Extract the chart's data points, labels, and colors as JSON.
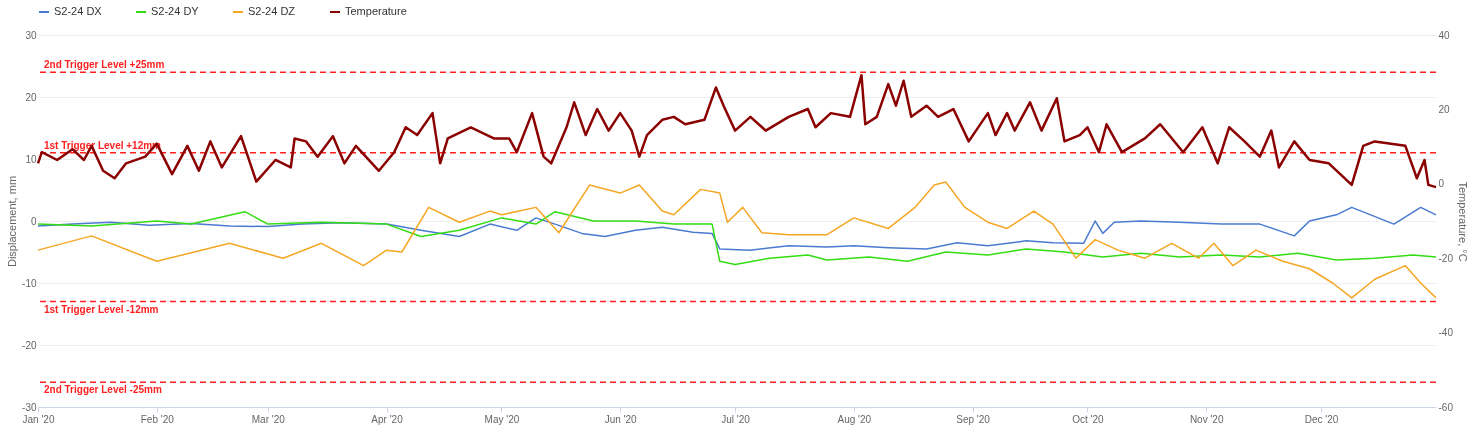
{
  "chart_data": {
    "type": "line",
    "ylabel": "Displacement, mm",
    "y2label": "Temperature, °C",
    "xlim": [
      "2020-01-01",
      "2020-12-31"
    ],
    "xticks": [
      {
        "value": "2020-01-01",
        "label": "Jan '20"
      },
      {
        "value": "2020-02-01",
        "label": "Feb '20"
      },
      {
        "value": "2020-03-01",
        "label": "Mar '20"
      },
      {
        "value": "2020-04-01",
        "label": "Apr '20"
      },
      {
        "value": "2020-05-01",
        "label": "May '20"
      },
      {
        "value": "2020-06-01",
        "label": "Jun '20"
      },
      {
        "value": "2020-07-01",
        "label": "Jul '20"
      },
      {
        "value": "2020-08-01",
        "label": "Aug '20"
      },
      {
        "value": "2020-09-01",
        "label": "Sep '20"
      },
      {
        "value": "2020-10-01",
        "label": "Oct '20"
      },
      {
        "value": "2020-11-01",
        "label": "Nov '20"
      },
      {
        "value": "2020-12-01",
        "label": "Dec '20"
      }
    ],
    "ylim": [
      -30,
      30
    ],
    "yticks": [
      -30,
      -20,
      -10,
      0,
      10,
      20,
      30
    ],
    "y2lim": [
      -60,
      40
    ],
    "y2ticks": [
      -60,
      -40,
      -20,
      0,
      20,
      40
    ],
    "grid": "y",
    "legend": "top",
    "line_style": "solid",
    "marker": "none",
    "series": [
      {
        "name": "S2-24 DX",
        "color": "#4a7bd0",
        "x": [
          "2020-01-01",
          "2020-01-10",
          "2020-01-20",
          "2020-01-30",
          "2020-02-10",
          "2020-02-20",
          "2020-03-01",
          "2020-03-10",
          "2020-03-20",
          "2020-04-01",
          "2020-04-10",
          "2020-04-20",
          "2020-04-28",
          "2020-05-05",
          "2020-05-10",
          "2020-05-15",
          "2020-05-22",
          "2020-05-28",
          "2020-06-05",
          "2020-06-12",
          "2020-06-20",
          "2020-06-25",
          "2020-06-27",
          "2020-07-05",
          "2020-07-15",
          "2020-07-25",
          "2020-08-01",
          "2020-08-10",
          "2020-08-20",
          "2020-08-28",
          "2020-09-05",
          "2020-09-15",
          "2020-09-22",
          "2020-09-30",
          "2020-10-03",
          "2020-10-05",
          "2020-10-08",
          "2020-10-15",
          "2020-10-25",
          "2020-11-05",
          "2020-11-15",
          "2020-11-24",
          "2020-11-28",
          "2020-12-05",
          "2020-12-09",
          "2020-12-20",
          "2020-12-27",
          "2020-12-31"
        ],
        "values": [
          -0.8,
          -0.5,
          -0.2,
          -0.7,
          -0.4,
          -0.8,
          -0.9,
          -0.5,
          -0.3,
          -0.5,
          -1.5,
          -2.5,
          -0.5,
          -1.5,
          0.5,
          -0.5,
          -2,
          -2.5,
          -1.5,
          -1,
          -1.8,
          -2,
          -4.5,
          -4.7,
          -4,
          -4.2,
          -4,
          -4.3,
          -4.5,
          -3.5,
          -4,
          -3.2,
          -3.5,
          -3.6,
          0,
          -2,
          -0.2,
          0,
          -0.2,
          -0.5,
          -0.5,
          -2.4,
          0,
          1,
          2.2,
          -0.5,
          2.2,
          1
        ]
      },
      {
        "name": "S2-24 DY",
        "color": "#33dd11",
        "x": [
          "2020-01-01",
          "2020-01-15",
          "2020-02-01",
          "2020-02-10",
          "2020-02-24",
          "2020-03-01",
          "2020-03-15",
          "2020-04-01",
          "2020-04-10",
          "2020-04-20",
          "2020-05-01",
          "2020-05-10",
          "2020-05-15",
          "2020-05-25",
          "2020-06-05",
          "2020-06-15",
          "2020-06-25",
          "2020-06-27",
          "2020-07-01",
          "2020-07-10",
          "2020-07-20",
          "2020-07-25",
          "2020-08-05",
          "2020-08-15",
          "2020-08-25",
          "2020-09-05",
          "2020-09-15",
          "2020-09-25",
          "2020-10-05",
          "2020-10-15",
          "2020-10-25",
          "2020-11-05",
          "2020-11-15",
          "2020-11-25",
          "2020-12-05",
          "2020-12-15",
          "2020-12-25",
          "2020-12-31"
        ],
        "values": [
          -0.5,
          -0.8,
          0,
          -0.5,
          1.5,
          -0.5,
          -0.2,
          -0.5,
          -2.5,
          -1.5,
          0.5,
          -0.5,
          1.5,
          0,
          0,
          -0.5,
          -0.5,
          -6.5,
          -7,
          -6,
          -5.5,
          -6.3,
          -5.8,
          -6.5,
          -5,
          -5.5,
          -4.5,
          -5,
          -5.8,
          -5.2,
          -5.8,
          -5.5,
          -5.8,
          -5.2,
          -6.3,
          -6,
          -5.5,
          -5.8
        ]
      },
      {
        "name": "S2-24 DZ",
        "color": "#f5a623",
        "x": [
          "2020-01-01",
          "2020-01-15",
          "2020-02-01",
          "2020-02-20",
          "2020-03-05",
          "2020-03-15",
          "2020-03-26",
          "2020-04-01",
          "2020-04-05",
          "2020-04-12",
          "2020-04-20",
          "2020-04-28",
          "2020-05-01",
          "2020-05-10",
          "2020-05-16",
          "2020-05-24",
          "2020-06-01",
          "2020-06-06",
          "2020-06-12",
          "2020-06-15",
          "2020-06-22",
          "2020-06-27",
          "2020-06-29",
          "2020-07-03",
          "2020-07-08",
          "2020-07-15",
          "2020-07-25",
          "2020-08-01",
          "2020-08-10",
          "2020-08-17",
          "2020-08-22",
          "2020-08-25",
          "2020-08-30",
          "2020-09-05",
          "2020-09-10",
          "2020-09-17",
          "2020-09-22",
          "2020-09-28",
          "2020-10-03",
          "2020-10-09",
          "2020-10-16",
          "2020-10-23",
          "2020-10-30",
          "2020-11-03",
          "2020-11-08",
          "2020-11-14",
          "2020-11-21",
          "2020-11-28",
          "2020-12-04",
          "2020-12-09",
          "2020-12-15",
          "2020-12-23",
          "2020-12-27",
          "2020-12-31"
        ],
        "values": [
          -4.7,
          -2.4,
          -6.5,
          -3.6,
          -6,
          -3.6,
          -7.2,
          -4.7,
          -5,
          2.2,
          -0.2,
          1.6,
          1,
          2.2,
          -1.9,
          5.8,
          4.5,
          5.8,
          1.6,
          1,
          5.1,
          4.5,
          -0.2,
          2.2,
          -1.9,
          -2.2,
          -2.2,
          0.5,
          -1.2,
          2.2,
          5.8,
          6.3,
          2.2,
          -0.2,
          -1.2,
          1.6,
          -0.5,
          -6,
          -3,
          -4.7,
          -6,
          -3.6,
          -6,
          -3.6,
          -7.2,
          -4.7,
          -6.5,
          -7.7,
          -10,
          -12.4,
          -9.4,
          -7.2,
          -10,
          -12.4
        ]
      },
      {
        "name": "Temperature",
        "color": "#8b0000",
        "axis": "y2",
        "x": [
          "2020-01-01",
          "2020-01-02",
          "2020-01-06",
          "2020-01-10",
          "2020-01-13",
          "2020-01-15",
          "2020-01-18",
          "2020-01-21",
          "2020-01-24",
          "2020-01-29",
          "2020-02-01",
          "2020-02-05",
          "2020-02-09",
          "2020-02-12",
          "2020-02-15",
          "2020-02-18",
          "2020-02-23",
          "2020-02-27",
          "2020-03-03",
          "2020-03-07",
          "2020-03-08",
          "2020-03-11",
          "2020-03-14",
          "2020-03-18",
          "2020-03-21",
          "2020-03-24",
          "2020-03-30",
          "2020-04-03",
          "2020-04-06",
          "2020-04-09",
          "2020-04-13",
          "2020-04-15",
          "2020-04-17",
          "2020-04-23",
          "2020-04-29",
          "2020-05-03",
          "2020-05-05",
          "2020-05-09",
          "2020-05-12",
          "2020-05-14",
          "2020-05-18",
          "2020-05-20",
          "2020-05-23",
          "2020-05-26",
          "2020-05-29",
          "2020-06-01",
          "2020-06-04",
          "2020-06-06",
          "2020-06-08",
          "2020-06-12",
          "2020-06-15",
          "2020-06-18",
          "2020-06-23",
          "2020-06-26",
          "2020-06-28",
          "2020-07-01",
          "2020-07-05",
          "2020-07-09",
          "2020-07-15",
          "2020-07-20",
          "2020-07-22",
          "2020-07-26",
          "2020-07-31",
          "2020-08-03",
          "2020-08-04",
          "2020-08-07",
          "2020-08-10",
          "2020-08-12",
          "2020-08-14",
          "2020-08-16",
          "2020-08-20",
          "2020-08-23",
          "2020-08-27",
          "2020-08-31",
          "2020-09-05",
          "2020-09-07",
          "2020-09-10",
          "2020-09-12",
          "2020-09-16",
          "2020-09-19",
          "2020-09-23",
          "2020-09-25",
          "2020-09-29",
          "2020-10-01",
          "2020-10-04",
          "2020-10-06",
          "2020-10-10",
          "2020-10-16",
          "2020-10-20",
          "2020-10-26",
          "2020-10-31",
          "2020-11-04",
          "2020-11-07",
          "2020-11-11",
          "2020-11-15",
          "2020-11-18",
          "2020-11-20",
          "2020-11-24",
          "2020-11-28",
          "2020-12-03",
          "2020-12-09",
          "2020-12-12",
          "2020-12-15",
          "2020-12-23",
          "2020-12-26",
          "2020-12-28",
          "2020-12-29",
          "2020-12-31"
        ],
        "values": [
          5.5,
          8.5,
          6.4,
          9.3,
          6.4,
          10.2,
          3.5,
          1.5,
          5.5,
          7.3,
          10.8,
          2.6,
          10.2,
          3.5,
          11.4,
          4.4,
          12.8,
          0.6,
          6.4,
          4.4,
          12.2,
          11.4,
          7.3,
          12.8,
          5.5,
          10.2,
          3.5,
          8.5,
          15.2,
          13.1,
          19,
          5.5,
          12.2,
          15.2,
          12.2,
          12.2,
          8.5,
          19,
          7.3,
          5.5,
          15.2,
          21.9,
          13.1,
          20.1,
          14.3,
          19,
          14.3,
          7.3,
          13.1,
          17.2,
          18,
          16,
          17.2,
          25.9,
          21,
          14.3,
          18,
          14.3,
          18,
          20.1,
          15.2,
          19,
          18,
          29.2,
          16,
          18,
          26.8,
          21,
          27.7,
          18,
          21,
          18,
          20.1,
          11.4,
          19,
          13.1,
          19,
          14.3,
          21.9,
          14.3,
          23,
          11.4,
          13.1,
          15.2,
          8.5,
          16,
          8.5,
          12.2,
          16,
          8.5,
          15.2,
          5.5,
          15.2,
          11.4,
          7.3,
          14.3,
          4.4,
          11.4,
          6.4,
          5.5,
          -0.3,
          10.2,
          11.4,
          10.2,
          1.5,
          6.4,
          -0.3,
          -0.9
        ]
      }
    ],
    "ref_lines": [
      {
        "axis": "y",
        "value": 24,
        "label": "2nd Trigger Level +25mm",
        "color": "#ff2020",
        "line_style": "dashed"
      },
      {
        "axis": "y",
        "value": 11,
        "label": "1st Trigger Level +12mm",
        "color": "#ff2020",
        "line_style": "dashed"
      },
      {
        "axis": "y",
        "value": -13,
        "label": "1st Trigger Level -12mm",
        "color": "#ff2020",
        "line_style": "dashed"
      },
      {
        "axis": "y",
        "value": -26,
        "label": "2nd Trigger Level -25mm",
        "color": "#ff2020",
        "line_style": "dashed"
      }
    ]
  }
}
